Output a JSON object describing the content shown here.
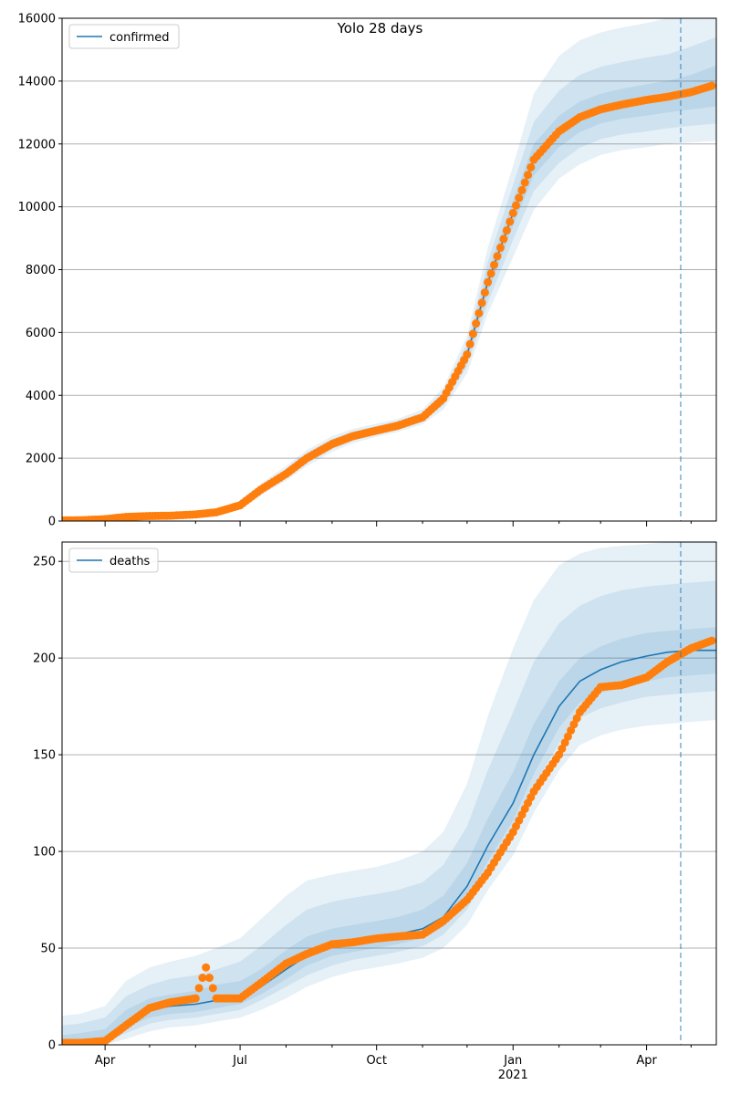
{
  "title": "Yolo 28 days",
  "colors": {
    "line": "#1f77b4",
    "points": "#ff7f0e",
    "band": "#1f77b4",
    "grid": "#b0b0b0",
    "forecast_line": "#1f77b4"
  },
  "chart_data": [
    {
      "type": "line",
      "name": "confirmed-panel",
      "legend": "confirmed",
      "legend_position": "upper-left",
      "grid": "horizontal",
      "x_type": "date",
      "xlim": [
        "2020-03-03",
        "2021-05-18"
      ],
      "ylim": [
        0,
        16000
      ],
      "yticks": [
        0,
        2000,
        4000,
        6000,
        8000,
        10000,
        12000,
        14000,
        16000
      ],
      "ytick_labels": [
        "0",
        "2000",
        "4000",
        "6000",
        "8000",
        "10000",
        "12000",
        "14000",
        "16000"
      ],
      "forecast_start": "2021-04-24",
      "x": [
        "2020-03-03",
        "2020-03-15",
        "2020-04-01",
        "2020-04-15",
        "2020-05-01",
        "2020-05-15",
        "2020-06-01",
        "2020-06-15",
        "2020-07-01",
        "2020-07-15",
        "2020-08-01",
        "2020-08-15",
        "2020-09-01",
        "2020-09-15",
        "2020-10-01",
        "2020-10-15",
        "2020-11-01",
        "2020-11-15",
        "2020-12-01",
        "2020-12-15",
        "2021-01-01",
        "2021-01-15",
        "2021-02-01",
        "2021-02-15",
        "2021-03-01",
        "2021-03-15",
        "2021-04-01",
        "2021-04-15",
        "2021-05-01",
        "2021-05-18"
      ],
      "series": [
        {
          "name": "confirmed",
          "values": [
            20,
            25,
            60,
            130,
            160,
            170,
            210,
            280,
            500,
            1000,
            1500,
            2000,
            2450,
            2700,
            2880,
            3030,
            3300,
            3900,
            5300,
            7600,
            9800,
            11500,
            12400,
            12850,
            13100,
            13250,
            13400,
            13500,
            13640,
            13850
          ],
          "bands": [
            {
              "lower": [
                5,
                5,
                25,
                80,
                110,
                120,
                150,
                200,
                380,
                820,
                1280,
                1750,
                2200,
                2480,
                2680,
                2830,
                3080,
                3550,
                4700,
                6600,
                8400,
                9900,
                10900,
                11350,
                11650,
                11800,
                11900,
                12000,
                12050,
                12100
              ],
              "upper": [
                60,
                70,
                110,
                190,
                220,
                230,
                280,
                380,
                650,
                1200,
                1750,
                2260,
                2700,
                2930,
                3100,
                3250,
                3550,
                4250,
                5900,
                8700,
                11300,
                13600,
                14800,
                15300,
                15550,
                15700,
                15850,
                16000,
                16300,
                16600
              ]
            },
            {
              "lower": [
                10,
                10,
                35,
                95,
                125,
                135,
                170,
                225,
                420,
                880,
                1360,
                1840,
                2290,
                2560,
                2750,
                2900,
                3160,
                3680,
                4930,
                6950,
                8950,
                10500,
                11400,
                11880,
                12150,
                12300,
                12400,
                12500,
                12580,
                12650
              ],
              "upper": [
                45,
                55,
                95,
                170,
                200,
                210,
                260,
                350,
                600,
                1130,
                1650,
                2170,
                2610,
                2850,
                3030,
                3180,
                3450,
                4100,
                5650,
                8250,
                10700,
                12700,
                13700,
                14200,
                14450,
                14600,
                14750,
                14850,
                15100,
                15400
              ]
            },
            {
              "lower": [
                15,
                18,
                48,
                115,
                145,
                155,
                190,
                255,
                465,
                940,
                1430,
                1920,
                2380,
                2630,
                2820,
                2970,
                3230,
                3800,
                5120,
                7280,
                9400,
                11000,
                11900,
                12380,
                12650,
                12800,
                12900,
                13000,
                13100,
                13200
              ],
              "upper": [
                32,
                40,
                78,
                150,
                180,
                190,
                235,
                315,
                550,
                1070,
                1580,
                2090,
                2530,
                2780,
                2960,
                3110,
                3380,
                4000,
                5480,
                7920,
                10200,
                12000,
                12900,
                13350,
                13600,
                13750,
                13900,
                14000,
                14200,
                14500
              ]
            }
          ]
        }
      ],
      "observed": {
        "name": "confirmed observed",
        "x": [
          "2020-03-03",
          "2020-03-15",
          "2020-04-01",
          "2020-04-15",
          "2020-05-01",
          "2020-05-15",
          "2020-06-01",
          "2020-06-15",
          "2020-07-01",
          "2020-07-15",
          "2020-08-01",
          "2020-08-15",
          "2020-09-01",
          "2020-09-15",
          "2020-10-01",
          "2020-10-15",
          "2020-11-01",
          "2020-11-15",
          "2020-12-01",
          "2020-12-15",
          "2021-01-01",
          "2021-01-15",
          "2021-02-01",
          "2021-02-15",
          "2021-03-01",
          "2021-03-15",
          "2021-04-01",
          "2021-04-15",
          "2021-05-01",
          "2021-05-15"
        ],
        "values": [
          20,
          25,
          60,
          130,
          160,
          170,
          210,
          280,
          500,
          1000,
          1500,
          2000,
          2450,
          2700,
          2880,
          3030,
          3300,
          3900,
          5300,
          7600,
          9800,
          11500,
          12400,
          12850,
          13100,
          13250,
          13400,
          13500,
          13650,
          13850
        ]
      }
    },
    {
      "type": "line",
      "name": "deaths-panel",
      "legend": "deaths",
      "legend_position": "upper-left",
      "grid": "horizontal",
      "x_type": "date",
      "xlim": [
        "2020-03-03",
        "2021-05-18"
      ],
      "ylim": [
        0,
        260
      ],
      "yticks": [
        0,
        50,
        100,
        150,
        200,
        250
      ],
      "ytick_labels": [
        "0",
        "50",
        "100",
        "150",
        "200",
        "250"
      ],
      "xticks": [
        "2020-04-01",
        "2020-07-01",
        "2020-10-01",
        "2021-01-01",
        "2021-04-01"
      ],
      "xtick_labels": [
        "Apr",
        "Jul",
        "Oct",
        "Jan",
        "Apr"
      ],
      "xtick_year_label": "2021",
      "forecast_start": "2021-04-24",
      "x": [
        "2020-03-03",
        "2020-03-15",
        "2020-04-01",
        "2020-04-15",
        "2020-05-01",
        "2020-05-15",
        "2020-06-01",
        "2020-06-15",
        "2020-07-01",
        "2020-07-15",
        "2020-08-01",
        "2020-08-15",
        "2020-09-01",
        "2020-09-15",
        "2020-10-01",
        "2020-10-15",
        "2020-11-01",
        "2020-11-15",
        "2020-12-01",
        "2020-12-15",
        "2021-01-01",
        "2021-01-15",
        "2021-02-01",
        "2021-02-15",
        "2021-03-01",
        "2021-03-15",
        "2021-04-01",
        "2021-04-15",
        "2021-05-01",
        "2021-05-18"
      ],
      "series": [
        {
          "name": "deaths",
          "values": [
            1,
            1,
            2,
            12,
            18,
            20,
            21,
            23,
            24,
            30,
            39,
            46,
            51,
            53,
            55,
            57,
            60,
            66,
            82,
            103,
            125,
            150,
            175,
            188,
            194,
            198,
            201,
            203,
            204,
            204
          ],
          "bands": [
            {
              "lower": [
                0,
                0,
                0,
                3,
                7,
                9,
                10,
                12,
                14,
                18,
                24,
                30,
                35,
                38,
                40,
                42,
                45,
                50,
                62,
                80,
                98,
                120,
                142,
                155,
                160,
                163,
                165,
                166,
                167,
                168
              ],
              "upper": [
                15,
                16,
                20,
                33,
                40,
                43,
                46,
                50,
                55,
                65,
                77,
                85,
                88,
                90,
                92,
                95,
                100,
                110,
                135,
                170,
                205,
                230,
                248,
                254,
                257,
                258,
                259,
                260,
                260,
                260
              ]
            },
            {
              "lower": [
                0,
                0,
                1,
                6,
                11,
                13,
                14,
                16,
                18,
                23,
                30,
                36,
                41,
                44,
                46,
                48,
                51,
                57,
                70,
                89,
                109,
                133,
                156,
                169,
                174,
                177,
                180,
                181,
                182,
                183
              ],
              "upper": [
                10,
                11,
                14,
                25,
                31,
                34,
                36,
                39,
                43,
                51,
                62,
                70,
                74,
                76,
                78,
                80,
                84,
                93,
                113,
                142,
                172,
                198,
                218,
                227,
                232,
                235,
                237,
                238,
                239,
                240
              ]
            },
            {
              "lower": [
                0,
                0,
                1,
                9,
                14,
                16,
                17,
                19,
                21,
                26,
                34,
                41,
                46,
                48,
                50,
                52,
                55,
                61,
                75,
                95,
                116,
                140,
                164,
                177,
                182,
                185,
                188,
                190,
                191,
                192
              ],
              "upper": [
                5,
                6,
                8,
                18,
                24,
                26,
                28,
                31,
                33,
                39,
                49,
                56,
                60,
                62,
                64,
                66,
                70,
                77,
                94,
                117,
                141,
                166,
                188,
                200,
                206,
                210,
                213,
                214,
                215,
                216
              ]
            }
          ]
        }
      ],
      "observed": {
        "name": "deaths observed",
        "x": [
          "2020-03-03",
          "2020-03-15",
          "2020-04-01",
          "2020-04-15",
          "2020-05-01",
          "2020-05-15",
          "2020-06-01",
          "2020-06-08",
          "2020-06-15",
          "2020-07-01",
          "2020-07-15",
          "2020-08-01",
          "2020-08-15",
          "2020-09-01",
          "2020-09-15",
          "2020-10-01",
          "2020-10-15",
          "2020-11-01",
          "2020-11-15",
          "2020-12-01",
          "2020-12-15",
          "2021-01-01",
          "2021-01-15",
          "2021-02-01",
          "2021-02-15",
          "2021-03-01",
          "2021-03-15",
          "2021-04-01",
          "2021-04-15",
          "2021-05-01",
          "2021-05-15"
        ],
        "values": [
          1,
          1,
          2,
          10,
          19,
          22,
          24,
          40,
          24,
          24,
          32,
          42,
          47,
          52,
          53,
          55,
          56,
          57,
          64,
          75,
          89,
          110,
          131,
          150,
          172,
          185,
          186,
          190,
          198,
          205,
          209
        ]
      }
    }
  ]
}
